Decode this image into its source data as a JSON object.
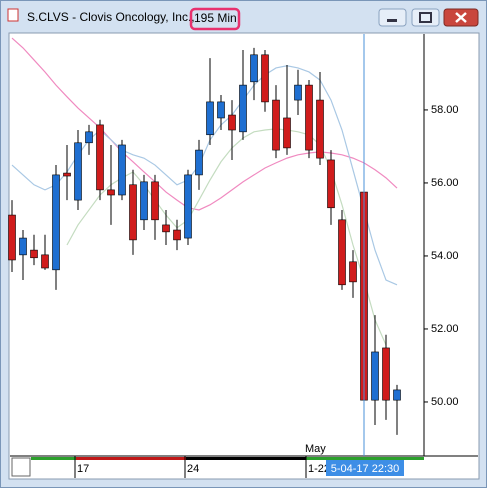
{
  "window": {
    "title": "S.CLVS - Clovis Oncology, Inc., ",
    "title_highlight": "195 Min"
  },
  "chart_data": {
    "type": "candlestick",
    "categories": [
      null,
      null,
      null,
      null,
      null,
      null,
      "17",
      null,
      null,
      null,
      null,
      null,
      null,
      null,
      null,
      null,
      "24",
      null,
      null,
      null,
      null,
      null,
      null,
      null,
      null,
      null,
      null,
      "1-22",
      null,
      null,
      null,
      null,
      null,
      null,
      null,
      null
    ],
    "x_month_label": "May",
    "crosshair_label": "5-04-17 22:30",
    "open": [
      55.12,
      54.03,
      54.16,
      54.03,
      53.62,
      56.27,
      55.53,
      57.1,
      57.59,
      55.81,
      55.67,
      55.95,
      54.99,
      56.03,
      54.85,
      54.71,
      54.49,
      56.22,
      57.32,
      57.78,
      57.86,
      57.4,
      58.77,
      59.51,
      58.27,
      57.78,
      58.27,
      58.68,
      58.27,
      56.63,
      54.99,
      53.84,
      55.75,
      50.05,
      51.48,
      50.05
    ],
    "high": [
      55.53,
      54.71,
      54.58,
      54.58,
      56.49,
      57.04,
      57.45,
      57.59,
      57.73,
      57.04,
      57.18,
      56.36,
      56.22,
      56.22,
      55.26,
      54.99,
      56.36,
      57.18,
      59.42,
      58.41,
      58.27,
      59.64,
      59.7,
      59.64,
      58.68,
      59.23,
      59.1,
      58.82,
      59.04,
      56.9,
      55.26,
      54.16,
      57.45,
      52.38,
      51.84,
      50.47
    ],
    "low": [
      53.56,
      53.34,
      53.75,
      53.62,
      53.07,
      55.53,
      55.26,
      56.77,
      55.53,
      54.85,
      55.53,
      54.03,
      54.71,
      54.44,
      54.3,
      54.16,
      54.3,
      55.81,
      57.04,
      57.45,
      56.63,
      57.18,
      58.27,
      57.95,
      56.68,
      56.77,
      57.86,
      56.68,
      56.49,
      54.85,
      53.07,
      52.85,
      49.37,
      49.37,
      49.51,
      49.1
    ],
    "close": [
      53.89,
      54.49,
      53.95,
      53.67,
      56.22,
      56.19,
      57.1,
      57.4,
      55.81,
      55.67,
      57.04,
      54.44,
      56.03,
      54.99,
      54.66,
      54.44,
      56.22,
      56.9,
      58.22,
      58.22,
      57.45,
      58.68,
      59.51,
      58.22,
      56.9,
      56.96,
      58.68,
      56.9,
      56.68,
      55.32,
      53.21,
      53.29,
      50.05,
      51.37,
      50.05,
      50.33
    ],
    "up_color": "#1f6fd1",
    "down_color": "#d01c1c",
    "lines": [
      {
        "color": "#f08ac0",
        "values": [
          59.97,
          59.7,
          59.37,
          59.04,
          58.68,
          58.36,
          58.05,
          57.78,
          57.51,
          57.18,
          56.85,
          56.58,
          56.3,
          56.03,
          55.75,
          55.53,
          55.32,
          55.26,
          55.4,
          55.59,
          55.81,
          56.03,
          56.22,
          56.41,
          56.55,
          56.68,
          56.77,
          56.82,
          56.85,
          56.82,
          56.77,
          56.68,
          56.55,
          56.36,
          56.14,
          55.86
        ]
      },
      {
        "color": "#a9c8e4",
        "values": [
          56.49,
          56.22,
          55.95,
          55.81,
          55.95,
          56.3,
          56.77,
          57.18,
          57.45,
          57.18,
          56.9,
          56.77,
          56.68,
          56.49,
          56.22,
          55.95,
          56.08,
          56.49,
          57.18,
          57.59,
          57.86,
          58.27,
          58.68,
          58.96,
          59.15,
          59.21,
          59.15,
          59.04,
          58.82,
          58.27,
          57.45,
          56.36,
          55.26,
          54.16,
          53.34,
          53.21
        ]
      },
      {
        "color": "#c4dcc0",
        "values": [
          null,
          null,
          null,
          null,
          null,
          54.3,
          54.85,
          55.26,
          55.67,
          55.95,
          56.14,
          56.3,
          55.95,
          55.53,
          55.12,
          54.77,
          54.99,
          55.53,
          56.08,
          56.58,
          56.96,
          57.23,
          57.4,
          57.45,
          57.48,
          57.45,
          57.4,
          57.32,
          57.04,
          56.36,
          55.4,
          54.3,
          53.34,
          52.25,
          51.56,
          null
        ]
      }
    ],
    "ylim": [
      48.52,
      60.08
    ],
    "yticks": [
      {
        "value": 50,
        "label": "50.00"
      },
      {
        "value": 52,
        "label": "52.00"
      },
      {
        "value": 54,
        "label": "54.00"
      },
      {
        "value": 56,
        "label": "56.00"
      },
      {
        "value": 58,
        "label": "58.00"
      }
    ]
  }
}
